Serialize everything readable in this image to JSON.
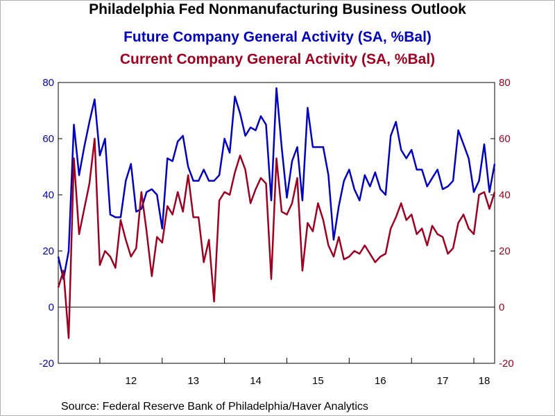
{
  "chart_data": {
    "type": "line",
    "title": "Philadelphia Fed Nonmanufacturing Business Outlook",
    "source": "Source:  Federal Reserve Bank of Philadelphia/Haver Analytics",
    "x_start": "2011-05",
    "x_tick_labels": [
      "12",
      "13",
      "14",
      "15",
      "16",
      "17",
      "18"
    ],
    "xlim": [
      "2011-05",
      "2018-05"
    ],
    "left_axis": {
      "ylim": [
        -20,
        80
      ],
      "ticks": [
        -20,
        0,
        20,
        40,
        60,
        80
      ],
      "color": "#0000b0"
    },
    "right_axis": {
      "ylim": [
        -20,
        80
      ],
      "ticks": [
        -20,
        0,
        20,
        40,
        60,
        80
      ],
      "color": "#a00020"
    },
    "zero_line": true,
    "grid": false,
    "series": [
      {
        "name": "Future Company General Activity (SA, %Bal)",
        "axis": "left",
        "color": "#0000c0",
        "values": [
          18,
          10,
          20,
          65,
          47,
          57,
          66,
          74,
          54,
          60,
          33,
          32,
          32,
          45,
          51,
          34,
          35,
          41,
          42,
          40,
          28,
          53,
          52,
          59,
          61,
          50,
          45,
          45,
          49,
          45,
          45,
          47,
          60,
          55,
          75,
          69,
          61,
          64,
          63,
          68,
          65,
          38,
          78,
          57,
          39,
          52,
          57,
          38,
          71,
          57,
          57,
          57,
          47,
          24,
          36,
          45,
          49,
          42,
          38,
          47,
          43,
          48,
          42,
          40,
          61,
          66,
          56,
          53,
          56,
          49,
          49,
          43,
          46,
          49,
          42,
          43,
          45,
          63,
          58,
          53,
          41,
          45,
          58,
          41,
          51
        ]
      },
      {
        "name": "Current Company General Activity (SA, %Bal)",
        "axis": "right",
        "color": "#a00020",
        "values": [
          7,
          13,
          -11,
          53,
          26,
          35,
          44,
          60,
          15,
          20,
          18,
          14,
          31,
          24,
          18,
          21,
          41,
          27,
          11,
          25,
          23,
          36,
          33,
          41,
          34,
          47,
          32,
          32,
          16,
          24,
          2,
          38,
          41,
          40,
          48,
          54,
          49,
          37,
          42,
          46,
          44,
          10,
          53,
          34,
          33,
          37,
          46,
          13,
          30,
          27,
          37,
          31,
          22,
          18,
          25,
          17,
          18,
          20,
          19,
          22,
          19,
          16,
          18,
          19,
          28,
          32,
          37,
          31,
          33,
          26,
          28,
          22,
          29,
          26,
          25,
          19,
          21,
          30,
          33,
          28,
          26,
          40,
          41,
          35,
          41
        ]
      }
    ]
  }
}
